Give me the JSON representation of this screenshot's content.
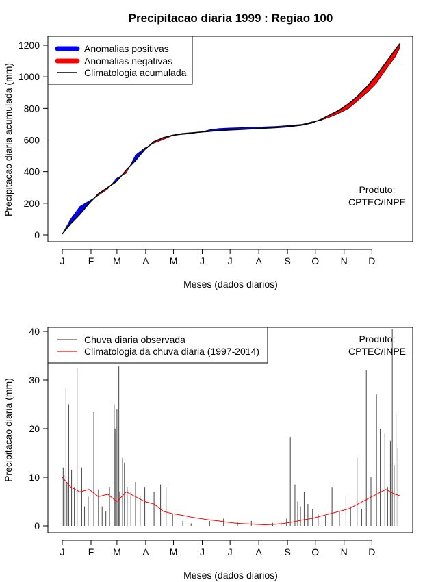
{
  "title": "Precipitacao diaria 1999 : Regiao 100",
  "months": [
    "J",
    "F",
    "M",
    "A",
    "M",
    "J",
    "J",
    "A",
    "S",
    "O",
    "N",
    "D"
  ],
  "product": {
    "line1": "Produto:",
    "line2": "CPTEC/INPE"
  },
  "colors": {
    "positive": "#0000ff",
    "negative": "#ff0000",
    "black": "#000000",
    "obs": "#555555",
    "clim": "#ff0000"
  },
  "chart_data": [
    {
      "type": "area",
      "ylabel": "Precipitacao diaria acumulada (mm)",
      "xlabel": "Meses (dados diarios)",
      "ylim": [
        0,
        1250
      ],
      "yticks": [
        0,
        200,
        400,
        600,
        800,
        1000,
        1200
      ],
      "legend": {
        "placement": "top-left",
        "entries": [
          "Anomalias positivas",
          "Anomalias negativas",
          "Climatologia acumulada"
        ]
      },
      "x_day": [
        1,
        10,
        20,
        30,
        40,
        50,
        60,
        70,
        80,
        90,
        100,
        110,
        120,
        130,
        140,
        150,
        160,
        170,
        180,
        190,
        200,
        210,
        220,
        230,
        240,
        250,
        260,
        270,
        280,
        290,
        300,
        310,
        320,
        330,
        340,
        350,
        360,
        365
      ],
      "climatology": [
        5,
        70,
        130,
        200,
        260,
        300,
        340,
        410,
        470,
        540,
        590,
        615,
        630,
        640,
        645,
        650,
        655,
        660,
        663,
        666,
        669,
        672,
        675,
        678,
        682,
        688,
        695,
        708,
        730,
        760,
        790,
        830,
        880,
        940,
        1010,
        1090,
        1170,
        1210
      ],
      "observed": [
        5,
        100,
        180,
        215,
        250,
        290,
        360,
        390,
        505,
        550,
        580,
        603,
        628,
        635,
        640,
        650,
        665,
        673,
        676,
        678,
        680,
        682,
        684,
        686,
        690,
        695,
        700,
        715,
        725,
        745,
        770,
        800,
        850,
        900,
        960,
        1045,
        1125,
        1180
      ]
    },
    {
      "type": "bar",
      "ylabel": "Precipitacao diaria (mm)",
      "xlabel": "Meses (dados diarios)",
      "ylim": [
        0,
        40
      ],
      "yticks": [
        0,
        10,
        20,
        30,
        40
      ],
      "legend": {
        "placement": "top-left",
        "entries": [
          "Chuva diaria observada",
          "Climatologia da chuva diaria (1997-2014)"
        ]
      },
      "observed_spikes": {
        "day": [
          2,
          3,
          5,
          6,
          8,
          11,
          14,
          17,
          22,
          25,
          29,
          35,
          40,
          44,
          48,
          52,
          57,
          58,
          60,
          62,
          63,
          66,
          68,
          71,
          75,
          80,
          85,
          90,
          100,
          107,
          113,
          120,
          131,
          140,
          160,
          175,
          190,
          205,
          228,
          237,
          243,
          247,
          252,
          255,
          258,
          262,
          266,
          271,
          277,
          285,
          292,
          300,
          307,
          312,
          319,
          324,
          329,
          334,
          340,
          344,
          349,
          352,
          355,
          357,
          359,
          361,
          363
        ],
        "mm": [
          12,
          10.5,
          28.5,
          9,
          25,
          11.5,
          8,
          32.5,
          12,
          4,
          6,
          23.5,
          7.5,
          4,
          3,
          8,
          25,
          20,
          24,
          32.8,
          7,
          14,
          13,
          8,
          7,
          9,
          6,
          8,
          7,
          8.5,
          8,
          2.5,
          1,
          0.5,
          1,
          1.5,
          0.8,
          1,
          0.6,
          0.5,
          1.5,
          18.3,
          8.5,
          5,
          4,
          7,
          4.5,
          3.5,
          2.5,
          2,
          8,
          3,
          6,
          4,
          14,
          3.5,
          32,
          10,
          27,
          20,
          19,
          8,
          17.5,
          40.5,
          12.5,
          23,
          16
        ]
      },
      "climatology_x": [
        1,
        10,
        20,
        30,
        40,
        50,
        60,
        70,
        80,
        90,
        100,
        110,
        120,
        130,
        140,
        150,
        160,
        170,
        180,
        190,
        200,
        210,
        220,
        230,
        240,
        250,
        260,
        270,
        280,
        290,
        300,
        310,
        320,
        330,
        340,
        350,
        360,
        365
      ],
      "climatology_mm": [
        10,
        8,
        7,
        7.5,
        6,
        6.5,
        5,
        7,
        6,
        5,
        4.5,
        3,
        2.5,
        2.2,
        1.8,
        1.5,
        1.2,
        1,
        0.7,
        0.5,
        0.4,
        0.3,
        0.2,
        0.3,
        0.5,
        0.8,
        1.2,
        1.5,
        2,
        2.5,
        3,
        3.5,
        4.5,
        5.5,
        6.5,
        7.5,
        6.5,
        6.2
      ]
    }
  ]
}
